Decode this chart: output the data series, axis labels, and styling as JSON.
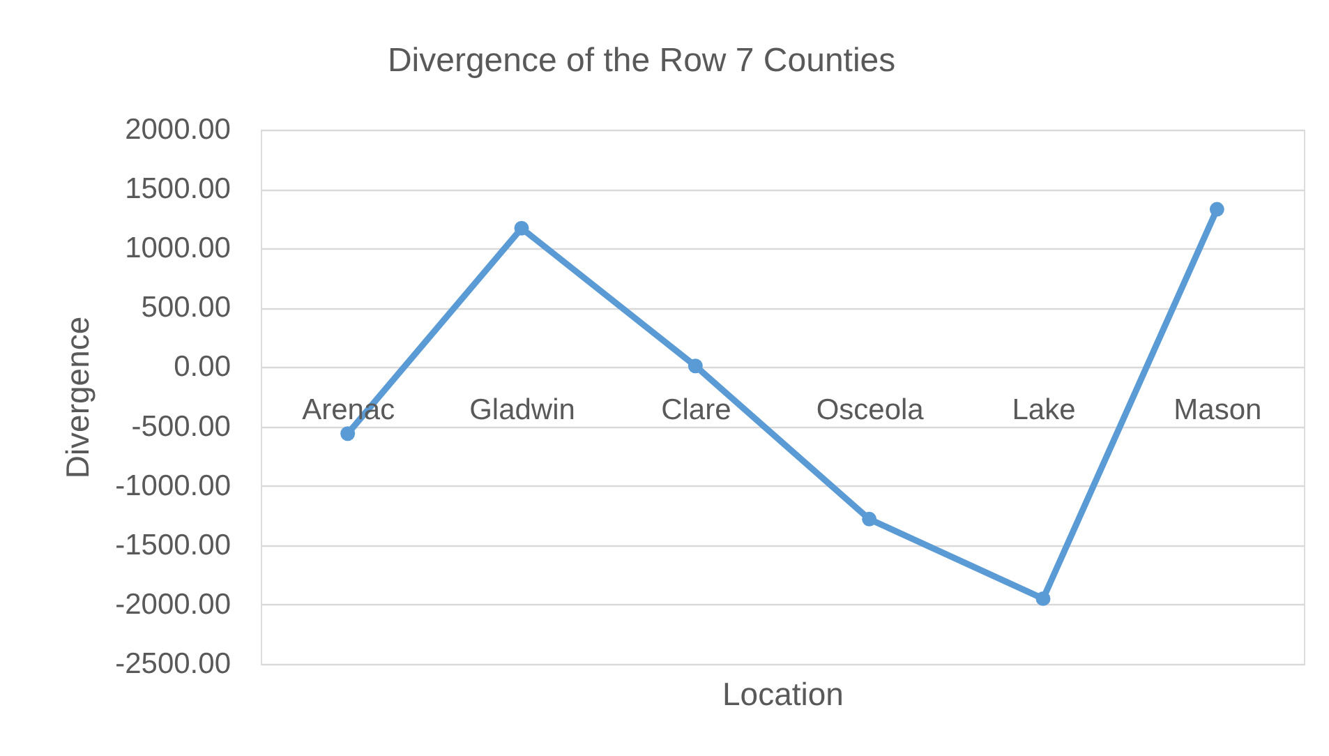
{
  "chart_data": {
    "type": "line",
    "title": "Divergence of the Row 7 Counties",
    "xlabel": "Location",
    "ylabel": "Divergence",
    "categories": [
      "Arenac",
      "Gladwin",
      "Clare",
      "Osceola",
      "Lake",
      "Mason"
    ],
    "series": [
      {
        "color": "#5b9bd5",
        "values": [
          -560,
          1170,
          10,
          -1280,
          -1950,
          1330
        ]
      }
    ],
    "ylim": [
      -2500,
      2000
    ],
    "yticks": [
      {
        "value": 2000,
        "label": "2000.00"
      },
      {
        "value": 1500,
        "label": "1500.00"
      },
      {
        "value": 1000,
        "label": "1000.00"
      },
      {
        "value": 500,
        "label": "500.00"
      },
      {
        "value": 0,
        "label": "0.00"
      },
      {
        "value": -500,
        "label": "-500.00"
      },
      {
        "value": -1000,
        "label": "-1000.00"
      },
      {
        "value": -1500,
        "label": "-1500.00"
      },
      {
        "value": -2000,
        "label": "-2000.00"
      },
      {
        "value": -2500,
        "label": "-2500.00"
      }
    ],
    "grid": "y",
    "marker": "circle",
    "line_style": "solid"
  }
}
